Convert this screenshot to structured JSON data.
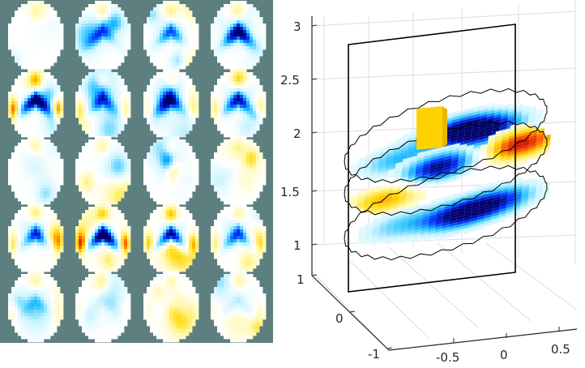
{
  "chart_data": [
    {
      "type": "heatmap",
      "panel": "left",
      "grid": {
        "columns": 4,
        "rows": 5
      },
      "background": "#5e7f7f",
      "colormap": [
        "#00006e",
        "#0033ff",
        "#29c3ff",
        "#cbf4ff",
        "#ffffff",
        "#fff8a8",
        "#ffd600",
        "#ff5500",
        "#bb0000"
      ],
      "columns": [
        [
          {
            "c": 0,
            "peak": 0.25,
            "edge": 0.0
          },
          {
            "c": -0.95,
            "peak": 0.65,
            "edge": 0.75
          },
          {
            "c": -0.05,
            "peak": 0.3,
            "edge": 0.0
          },
          {
            "c": -0.55,
            "peak": 0.45,
            "edge": 0.4
          },
          {
            "c": -0.2,
            "peak": 0.35,
            "edge": 0.2
          }
        ],
        [
          {
            "c": -0.45,
            "peak": 0.4,
            "edge": 0.0
          },
          {
            "c": -0.5,
            "peak": 0.45,
            "edge": 0.3
          },
          {
            "c": 0.0,
            "peak": 0.3,
            "edge": 0.0
          },
          {
            "c": -1.0,
            "peak": 0.55,
            "edge": 0.8
          },
          {
            "c": -0.15,
            "peak": 0.35,
            "edge": 0.1
          }
        ],
        [
          {
            "c": -0.5,
            "peak": 0.4,
            "edge": 0.0
          },
          {
            "c": -0.55,
            "peak": 0.45,
            "edge": 0.25
          },
          {
            "c": -0.1,
            "peak": 0.3,
            "edge": 0.0
          },
          {
            "c": -0.95,
            "peak": 0.65,
            "edge": 0.5
          },
          {
            "c": -0.15,
            "peak": 0.35,
            "edge": 0.1
          }
        ],
        [
          {
            "c": -0.8,
            "peak": 0.4,
            "edge": 0.0
          },
          {
            "c": -0.65,
            "peak": 0.45,
            "edge": 0.35
          },
          {
            "c": -0.1,
            "peak": 0.3,
            "edge": 0.0
          },
          {
            "c": -0.55,
            "peak": 0.45,
            "edge": 0.35
          },
          {
            "c": -0.2,
            "peak": 0.35,
            "edge": 0.1
          }
        ]
      ]
    },
    {
      "type": "surface3d",
      "panel": "right",
      "z_ticks": [
        "1",
        "1.5",
        "2",
        "2.5",
        "3"
      ],
      "y_ticks": [
        "1",
        "0",
        "-1"
      ],
      "x_ticks": [
        "-0.5",
        "0",
        "0.5"
      ],
      "zlim": [
        0.8,
        3
      ],
      "ylim": [
        -1,
        1
      ],
      "xlim": [
        -1,
        0.8
      ],
      "grid": true,
      "slice_levels": [
        1.2,
        1.6,
        1.9
      ],
      "slices": [
        {
          "z": 1.9,
          "blobs": [
            {
              "u": 0.55,
              "v": 0.45,
              "val": -0.9
            },
            {
              "u": 0.25,
              "v": 0.65,
              "val": -0.5
            },
            {
              "u": 0.7,
              "v": 0.55,
              "val": -0.8
            }
          ]
        },
        {
          "z": 1.6,
          "blobs": [
            {
              "u": 0.45,
              "v": 0.45,
              "val": -1.0
            },
            {
              "u": 0.85,
              "v": 0.4,
              "val": 0.95
            },
            {
              "u": 0.2,
              "v": 0.7,
              "val": 0.6
            }
          ]
        },
        {
          "z": 1.2,
          "blobs": [
            {
              "u": 0.55,
              "v": 0.55,
              "val": -0.9
            },
            {
              "u": 0.25,
              "v": 0.5,
              "val": -0.4
            },
            {
              "u": 0.75,
              "v": 0.5,
              "val": -0.7
            }
          ]
        }
      ],
      "column": {
        "top_color": "#ffd100",
        "side_color": "#e6b800"
      }
    }
  ]
}
